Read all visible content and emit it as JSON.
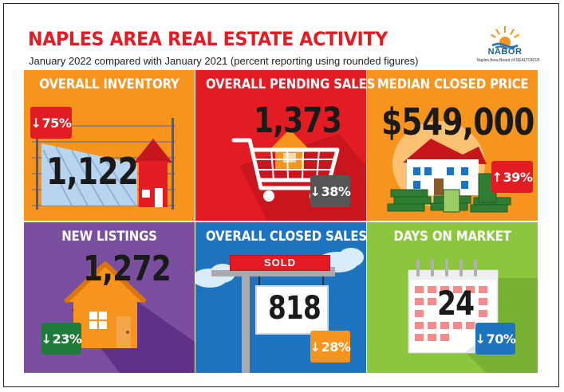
{
  "header": {
    "title": "NAPLES AREA REAL ESTATE ACTIVITY",
    "subtitle": "January 2022 compared with January 2021 (percent reporting using rounded figures)"
  },
  "logo": {
    "name": "NABOR",
    "tagline": "Naples Area Board of REALTORS®"
  },
  "tiles": [
    {
      "title": "OVERALL INVENTORY",
      "value": "1,122",
      "change": "75%",
      "direction": "down",
      "bg": "#f7941d",
      "badge_color": "#e31b23",
      "icon": "house-bar-chart-icon"
    },
    {
      "title": "OVERALL PENDING SALES",
      "value": "1,373",
      "change": "38%",
      "direction": "down",
      "bg": "#e31b23",
      "badge_color": "#555555",
      "icon": "shopping-cart-house-icon"
    },
    {
      "title": "MEDIAN CLOSED PRICE",
      "value": "$549,000",
      "change": "39%",
      "direction": "up",
      "bg": "#f7941d",
      "badge_color": "#e31b23",
      "icon": "house-money-icon"
    },
    {
      "title": "NEW LISTINGS",
      "value": "1,272",
      "change": "23%",
      "direction": "down",
      "bg": "#7b4fa0",
      "badge_color": "#1e7b3a",
      "icon": "house-icon"
    },
    {
      "title": "OVERALL CLOSED SALES",
      "value": "818",
      "change": "28%",
      "direction": "down",
      "bg": "#1e73be",
      "badge_color": "#f7941d",
      "icon": "sold-sign-icon",
      "sign_label": "SOLD"
    },
    {
      "title": "DAYS ON MARKET",
      "value": "24",
      "change": "70%",
      "direction": "down",
      "bg": "#8cc63f",
      "badge_color": "#1e73be",
      "icon": "calendar-icon"
    }
  ],
  "arrows": {
    "down": "↓",
    "up": "↑"
  }
}
